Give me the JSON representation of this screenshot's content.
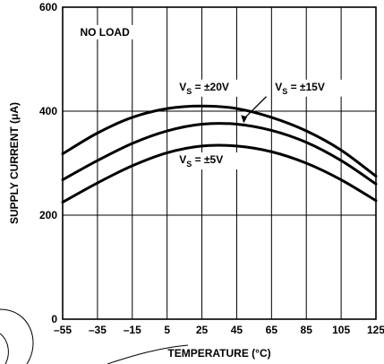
{
  "chart_data": {
    "type": "line",
    "title": "",
    "annotation": "NO LOAD",
    "xlabel": "TEMPERATURE (°C)",
    "ylabel": "SUPPLY CURRENT (μA)",
    "xlim": [
      -55,
      125
    ],
    "ylim": [
      0,
      600
    ],
    "xticks": [
      -55,
      -35,
      -15,
      5,
      25,
      45,
      65,
      85,
      105,
      125
    ],
    "xtick_labels": [
      "–55",
      "–35",
      "–15",
      "5",
      "25",
      "45",
      "65",
      "85",
      "105",
      "125"
    ],
    "yticks": [
      0,
      200,
      400,
      600
    ],
    "ytick_labels": [
      "0",
      "200",
      "400",
      "600"
    ],
    "grid": true,
    "x": [
      -55,
      -35,
      -15,
      5,
      25,
      45,
      65,
      85,
      105,
      125
    ],
    "series": [
      {
        "label_main": "V",
        "label_sub": "S",
        "label_rest": " = ±20V",
        "values": [
          318,
          358,
          388,
          405,
          410,
          405,
          388,
          362,
          325,
          275
        ]
      },
      {
        "label_main": "V",
        "label_sub": "S",
        "label_rest": " = ±15V",
        "values": [
          268,
          305,
          338,
          362,
          375,
          375,
          363,
          340,
          305,
          260
        ]
      },
      {
        "label_main": "V",
        "label_sub": "S",
        "label_rest": " = ±5V",
        "values": [
          225,
          262,
          295,
          320,
          333,
          333,
          322,
          300,
          268,
          228
        ]
      }
    ]
  }
}
